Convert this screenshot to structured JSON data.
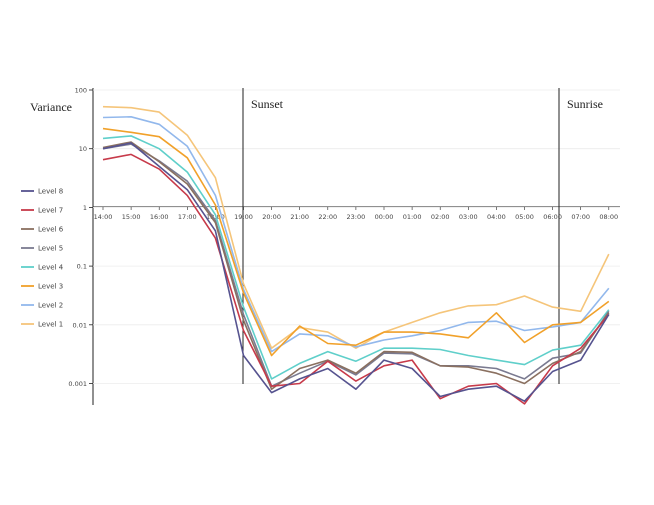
{
  "chart_data": {
    "type": "line",
    "ylabel": "Variance",
    "yscale": "log",
    "ylim": [
      0.0005,
      100
    ],
    "yticks": [
      "100",
      "10",
      "1",
      "0.1",
      "0.01",
      "0.001"
    ],
    "categories": [
      "14:00",
      "15:00",
      "16:00",
      "17:00",
      "18:00",
      "19:00",
      "20:00",
      "21:00",
      "22:00",
      "23:00",
      "00:00",
      "01:00",
      "02:00",
      "03:00",
      "04:00",
      "05:00",
      "06:00",
      "07:00",
      "08:00"
    ],
    "annotations": [
      {
        "text": "Sunset",
        "x": "19:00"
      },
      {
        "text": "Sunrise",
        "x": "06:00"
      }
    ],
    "legend_position": "left",
    "series": [
      {
        "name": "Level 8",
        "color": "#56538f",
        "values": [
          10,
          12.5,
          5,
          2,
          0.4,
          0.003,
          0.0007,
          0.0012,
          0.0018,
          0.0008,
          0.0025,
          0.0018,
          0.0006,
          0.0008,
          0.0009,
          0.0005,
          0.0016,
          0.0025,
          0.015
        ]
      },
      {
        "name": "Level 7",
        "color": "#c73a4a",
        "values": [
          6.5,
          8,
          4.5,
          1.6,
          0.3,
          0.008,
          0.0009,
          0.001,
          0.0024,
          0.0011,
          0.002,
          0.0025,
          0.00055,
          0.0009,
          0.001,
          0.00045,
          0.002,
          0.004,
          0.015
        ]
      },
      {
        "name": "Level 6",
        "color": "#8a7060",
        "values": [
          10.5,
          13,
          6,
          2.5,
          0.55,
          0.012,
          0.0008,
          0.0018,
          0.0025,
          0.0015,
          0.0035,
          0.0034,
          0.002,
          0.0019,
          0.0015,
          0.001,
          0.0022,
          0.0035,
          0.016
        ]
      },
      {
        "name": "Level 5",
        "color": "#7a7a90",
        "values": [
          10,
          12,
          6.2,
          2.8,
          0.6,
          0.015,
          0.0009,
          0.0015,
          0.0024,
          0.0014,
          0.0033,
          0.0032,
          0.002,
          0.002,
          0.0018,
          0.0012,
          0.0027,
          0.0033,
          0.017
        ]
      },
      {
        "name": "Level 4",
        "color": "#5fcfca",
        "values": [
          15,
          16.5,
          10,
          4,
          0.75,
          0.02,
          0.0012,
          0.0022,
          0.0035,
          0.0024,
          0.004,
          0.004,
          0.0038,
          0.003,
          0.0025,
          0.0021,
          0.0037,
          0.0045,
          0.018
        ]
      },
      {
        "name": "Level 3",
        "color": "#f1a12a",
        "values": [
          22,
          19,
          16,
          7,
          1.1,
          0.035,
          0.003,
          0.0095,
          0.0048,
          0.0045,
          0.0075,
          0.0075,
          0.007,
          0.006,
          0.016,
          0.005,
          0.01,
          0.011,
          0.025
        ]
      },
      {
        "name": "Level 2",
        "color": "#92b8ec",
        "values": [
          34,
          35,
          26,
          11,
          1.6,
          0.04,
          0.0035,
          0.007,
          0.0065,
          0.0042,
          0.0055,
          0.0065,
          0.008,
          0.011,
          0.0115,
          0.008,
          0.0092,
          0.011,
          0.042
        ]
      },
      {
        "name": "Level 1",
        "color": "#f5c57a",
        "values": [
          52,
          50,
          42,
          17,
          3.2,
          0.05,
          0.004,
          0.009,
          0.0075,
          0.004,
          0.0075,
          0.011,
          0.016,
          0.021,
          0.022,
          0.031,
          0.02,
          0.017,
          0.16
        ]
      }
    ]
  }
}
